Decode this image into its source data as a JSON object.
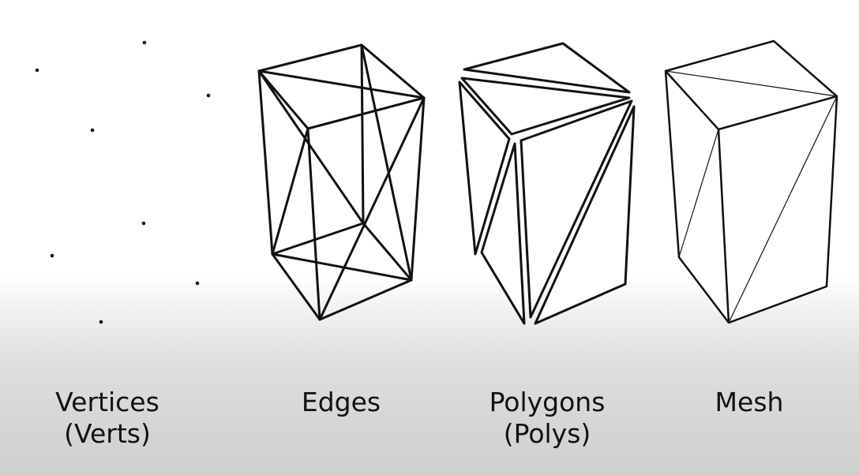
{
  "labels": {
    "vertices": {
      "line1": "Vertices",
      "line2": "(Verts)"
    },
    "edges": {
      "line1": "Edges"
    },
    "polygons": {
      "line1": "Polygons",
      "line2": "(Polys)"
    },
    "mesh": {
      "line1": "Mesh"
    }
  },
  "colors": {
    "stroke": "#111111",
    "background_top": "#ffffff",
    "background_bottom": "#cfcfcf"
  }
}
